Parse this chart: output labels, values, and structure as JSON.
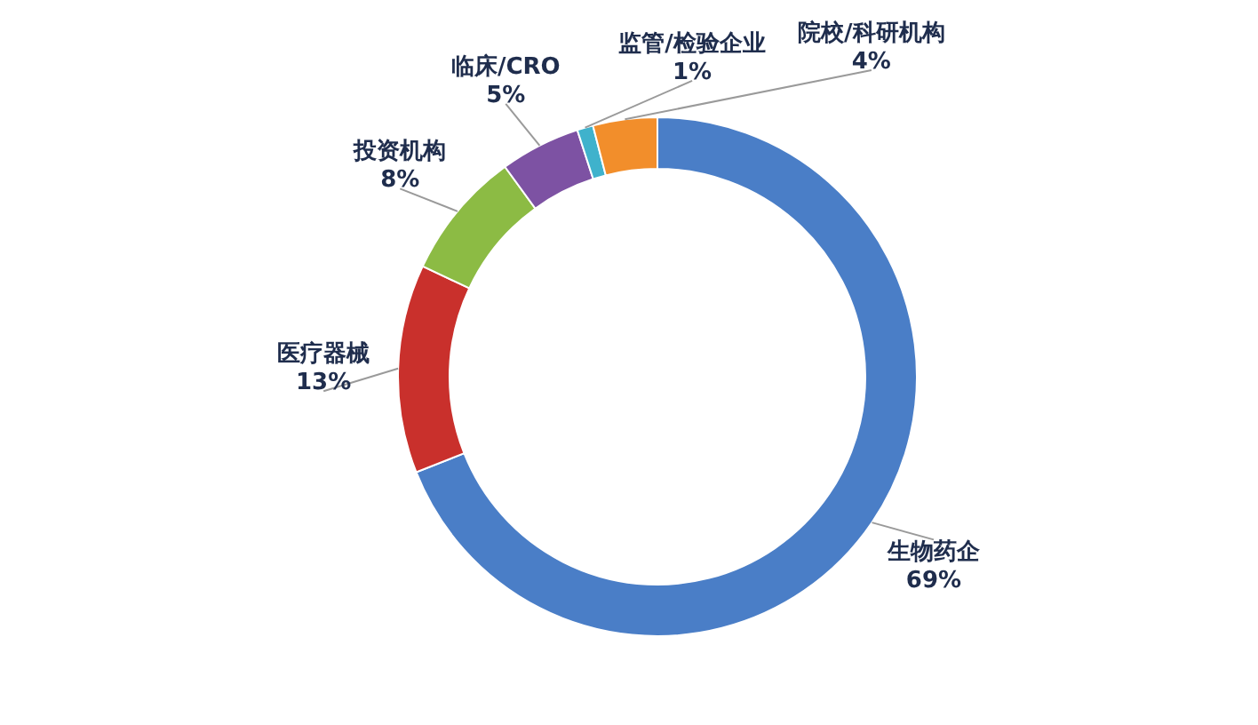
{
  "chart_data": {
    "type": "donut",
    "categories": [
      "生物药企",
      "医疗器械",
      "投资机构",
      "临床/CRO",
      "监管/检验企业",
      "院校/科研机构"
    ],
    "values": [
      69,
      13,
      8,
      5,
      1,
      4
    ],
    "colors": [
      "#4a7ec7",
      "#c9302c",
      "#8cbb44",
      "#7d52a3",
      "#3fb2cc",
      "#f28e2b"
    ],
    "value_labels": [
      "69%",
      "13%",
      "8%",
      "5%",
      "1%",
      "4%"
    ]
  }
}
